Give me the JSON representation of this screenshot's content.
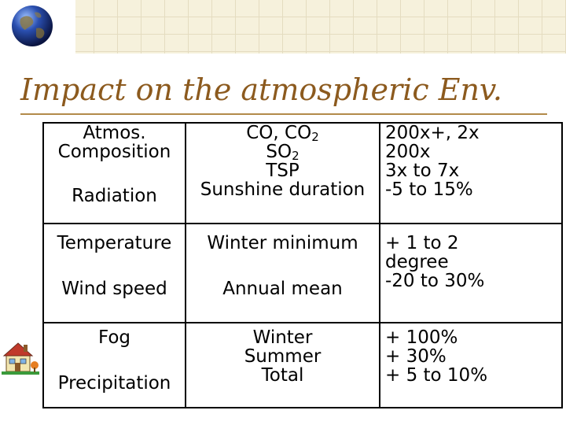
{
  "slide": {
    "title": "Impact on the atmospheric Env."
  },
  "table": {
    "group1": {
      "col1": {
        "a1": "Atmos.",
        "a2": "Composition",
        "b": "Radiation"
      },
      "col2": {
        "l1_base": "CO, CO",
        "l1_sub": "2",
        "l2_base": "SO",
        "l2_sub": "2",
        "l3": "TSP",
        "l4": "Sunshine duration"
      },
      "col3": {
        "l1": "200x+, 2x",
        "l2": "200x",
        "l3": "3x to 7x",
        "l4": "-5 to 15%"
      }
    },
    "group2": {
      "col1": {
        "a": "Temperature",
        "b": "Wind speed"
      },
      "col2": {
        "a": "Winter minimum",
        "b": "Annual mean"
      },
      "col3": {
        "l1": "+ 1 to 2",
        "l2": "degree",
        "l3": "-20 to 30%"
      }
    },
    "group3": {
      "col1": {
        "a": "Fog",
        "b": "Precipitation"
      },
      "col2": {
        "l1": "Winter",
        "l2": "Summer",
        "l3": "Total"
      },
      "col3": {
        "l1": "+ 100%",
        "l2": "+ 30%",
        "l3": "+ 5 to 10%"
      }
    }
  },
  "icons": {
    "globe": "globe-icon",
    "house": "house-icon"
  },
  "colors": {
    "title": "#8c5a1e",
    "banner": "#f6f1dc",
    "border": "#000000"
  }
}
